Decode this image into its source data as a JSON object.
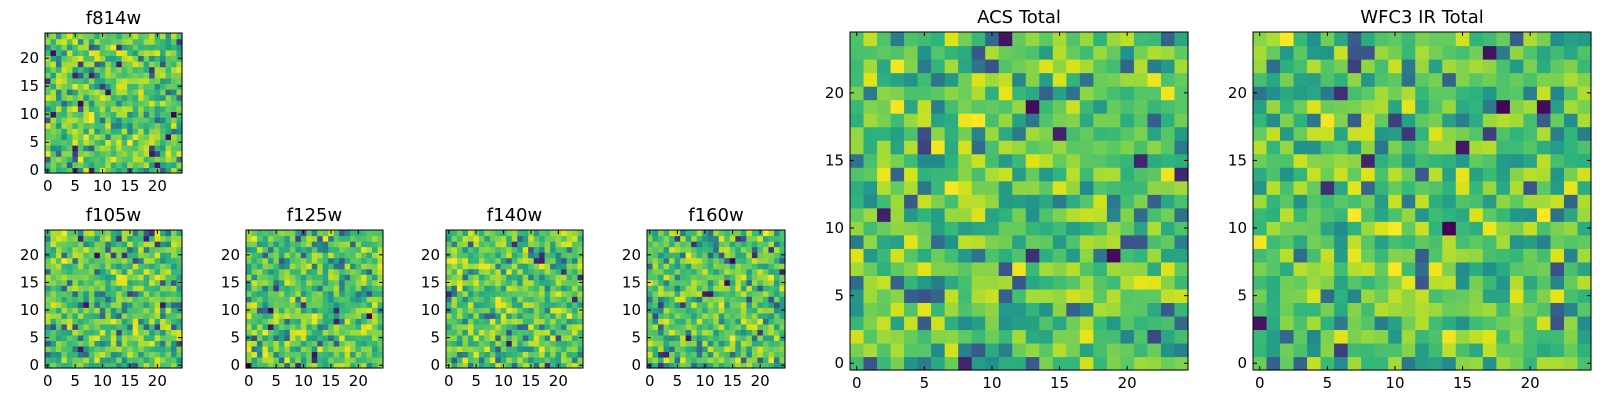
{
  "chart_data": [
    {
      "type": "heatmap",
      "title": "f814w",
      "grid_size": 25,
      "seed": 11,
      "xlim": [
        -0.5,
        24.5
      ],
      "ylim": [
        -0.5,
        24.5
      ],
      "xticks": [
        0,
        5,
        10,
        15,
        20
      ],
      "yticks": [
        0,
        5,
        10,
        15,
        20
      ],
      "xticklabels": [
        "0",
        "5",
        "10",
        "15",
        "20"
      ],
      "yticklabels": [
        "0",
        "5",
        "10",
        "15",
        "20"
      ],
      "xlabel": "",
      "ylabel": "",
      "colormap": "viridis"
    },
    {
      "type": "heatmap",
      "title": "f105w",
      "grid_size": 25,
      "seed": 23,
      "xlim": [
        -0.5,
        24.5
      ],
      "ylim": [
        -0.5,
        24.5
      ],
      "xticks": [
        0,
        5,
        10,
        15,
        20
      ],
      "yticks": [
        0,
        5,
        10,
        15,
        20
      ],
      "xticklabels": [
        "0",
        "5",
        "10",
        "15",
        "20"
      ],
      "yticklabels": [
        "0",
        "5",
        "10",
        "15",
        "20"
      ],
      "xlabel": "",
      "ylabel": "",
      "colormap": "viridis"
    },
    {
      "type": "heatmap",
      "title": "f125w",
      "grid_size": 25,
      "seed": 37,
      "xlim": [
        -0.5,
        24.5
      ],
      "ylim": [
        -0.5,
        24.5
      ],
      "xticks": [
        0,
        5,
        10,
        15,
        20
      ],
      "yticks": [
        0,
        5,
        10,
        15,
        20
      ],
      "xticklabels": [
        "0",
        "5",
        "10",
        "15",
        "20"
      ],
      "yticklabels": [
        "0",
        "5",
        "10",
        "15",
        "20"
      ],
      "xlabel": "",
      "ylabel": "",
      "colormap": "viridis"
    },
    {
      "type": "heatmap",
      "title": "f140w",
      "grid_size": 25,
      "seed": 41,
      "xlim": [
        -0.5,
        24.5
      ],
      "ylim": [
        -0.5,
        24.5
      ],
      "xticks": [
        0,
        5,
        10,
        15,
        20
      ],
      "yticks": [
        0,
        5,
        10,
        15,
        20
      ],
      "xticklabels": [
        "0",
        "5",
        "10",
        "15",
        "20"
      ],
      "yticklabels": [
        "0",
        "5",
        "10",
        "15",
        "20"
      ],
      "xlabel": "",
      "ylabel": "",
      "colormap": "viridis"
    },
    {
      "type": "heatmap",
      "title": "f160w",
      "grid_size": 25,
      "seed": 53,
      "xlim": [
        -0.5,
        24.5
      ],
      "ylim": [
        -0.5,
        24.5
      ],
      "xticks": [
        0,
        5,
        10,
        15,
        20
      ],
      "yticks": [
        0,
        5,
        10,
        15,
        20
      ],
      "xticklabels": [
        "0",
        "5",
        "10",
        "15",
        "20"
      ],
      "yticklabels": [
        "0",
        "5",
        "10",
        "15",
        "20"
      ],
      "xlabel": "",
      "ylabel": "",
      "colormap": "viridis"
    },
    {
      "type": "heatmap",
      "title": "ACS Total",
      "grid_size": 25,
      "seed": 67,
      "xlim": [
        -0.5,
        24.5
      ],
      "ylim": [
        -0.5,
        24.5
      ],
      "xticks": [
        0,
        5,
        10,
        15,
        20
      ],
      "yticks": [
        0,
        5,
        10,
        15,
        20
      ],
      "xticklabels": [
        "0",
        "5",
        "10",
        "15",
        "20"
      ],
      "yticklabels": [
        "0",
        "5",
        "10",
        "15",
        "20"
      ],
      "xlabel": "",
      "ylabel": "",
      "colormap": "viridis"
    },
    {
      "type": "heatmap",
      "title": "WFC3 IR Total",
      "grid_size": 25,
      "seed": 79,
      "xlim": [
        -0.5,
        24.5
      ],
      "ylim": [
        -0.5,
        24.5
      ],
      "xticks": [
        0,
        5,
        10,
        15,
        20
      ],
      "yticks": [
        0,
        5,
        10,
        15,
        20
      ],
      "xticklabels": [
        "0",
        "5",
        "10",
        "15",
        "20"
      ],
      "yticklabels": [
        "0",
        "5",
        "10",
        "15",
        "20"
      ],
      "xlabel": "",
      "ylabel": "",
      "colormap": "viridis"
    }
  ]
}
